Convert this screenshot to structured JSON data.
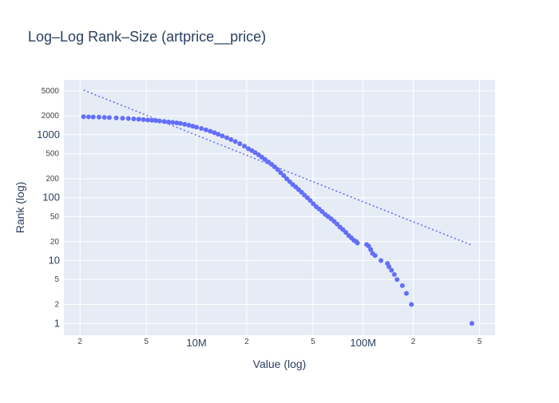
{
  "chart_data": {
    "type": "scatter",
    "title": "Log–Log Rank–Size (artprice__price)",
    "xlabel": "Value (log)",
    "ylabel": "Rank (log)",
    "x_scale": "log",
    "y_scale": "log",
    "xlim": [
      1600000,
      620000000
    ],
    "ylim": [
      0.65,
      7500
    ],
    "grid": true,
    "legend": "none",
    "colors": {
      "marker": "#636efa",
      "fit_line": "#636efa",
      "plot_bg": "#e5ecf6",
      "grid": "#ffffff",
      "text": "#2a3f5f"
    },
    "x_ticks": [
      {
        "value": 2000000,
        "label": "2",
        "major": false
      },
      {
        "value": 5000000,
        "label": "5",
        "major": false
      },
      {
        "value": 10000000,
        "label": "10M",
        "major": true
      },
      {
        "value": 20000000,
        "label": "2",
        "major": false
      },
      {
        "value": 50000000,
        "label": "5",
        "major": false
      },
      {
        "value": 100000000,
        "label": "100M",
        "major": true
      },
      {
        "value": 200000000,
        "label": "2",
        "major": false
      },
      {
        "value": 500000000,
        "label": "5",
        "major": false
      }
    ],
    "y_ticks": [
      {
        "value": 1,
        "label": "1",
        "major": true
      },
      {
        "value": 2,
        "label": "2",
        "major": false
      },
      {
        "value": 5,
        "label": "5",
        "major": false
      },
      {
        "value": 10,
        "label": "10",
        "major": true
      },
      {
        "value": 20,
        "label": "20",
        "major": false
      },
      {
        "value": 50,
        "label": "50",
        "major": false
      },
      {
        "value": 100,
        "label": "100",
        "major": true
      },
      {
        "value": 200,
        "label": "200",
        "major": false
      },
      {
        "value": 500,
        "label": "500",
        "major": false
      },
      {
        "value": 1000,
        "label": "1000",
        "major": true
      },
      {
        "value": 2000,
        "label": "2000",
        "major": false
      },
      {
        "value": 5000,
        "label": "5000",
        "major": false
      }
    ],
    "series": [
      {
        "type": "scatter",
        "points": [
          [
            2100000,
            1940
          ],
          [
            2250000,
            1930
          ],
          [
            2400000,
            1920
          ],
          [
            2600000,
            1910
          ],
          [
            2800000,
            1895
          ],
          [
            3000000,
            1880
          ],
          [
            3300000,
            1860
          ],
          [
            3600000,
            1840
          ],
          [
            3900000,
            1815
          ],
          [
            4200000,
            1790
          ],
          [
            4500000,
            1770
          ],
          [
            4800000,
            1745
          ],
          [
            5100000,
            1720
          ],
          [
            5400000,
            1700
          ],
          [
            5700000,
            1680
          ],
          [
            6000000,
            1660
          ],
          [
            6400000,
            1630
          ],
          [
            6800000,
            1600
          ],
          [
            7200000,
            1575
          ],
          [
            7600000,
            1550
          ],
          [
            8000000,
            1520
          ],
          [
            8500000,
            1470
          ],
          [
            9000000,
            1420
          ],
          [
            9500000,
            1370
          ],
          [
            10000000,
            1320
          ],
          [
            10700000,
            1260
          ],
          [
            11400000,
            1200
          ],
          [
            12100000,
            1140
          ],
          [
            12800000,
            1080
          ],
          [
            13500000,
            1020
          ],
          [
            14300000,
            960
          ],
          [
            15200000,
            900
          ],
          [
            16100000,
            840
          ],
          [
            17100000,
            780
          ],
          [
            18200000,
            720
          ],
          [
            19400000,
            660
          ],
          [
            20500000,
            600
          ],
          [
            21500000,
            560
          ],
          [
            22500000,
            520
          ],
          [
            23600000,
            480
          ],
          [
            24700000,
            440
          ],
          [
            25800000,
            405
          ],
          [
            27000000,
            370
          ],
          [
            28200000,
            340
          ],
          [
            29400000,
            310
          ],
          [
            30700000,
            280
          ],
          [
            32000000,
            250
          ],
          [
            33400000,
            225
          ],
          [
            34800000,
            200
          ],
          [
            36300000,
            180
          ],
          [
            37800000,
            162
          ],
          [
            39400000,
            148
          ],
          [
            41000000,
            135
          ],
          [
            42700000,
            122
          ],
          [
            44500000,
            110
          ],
          [
            46300000,
            100
          ],
          [
            48200000,
            90
          ],
          [
            50200000,
            80
          ],
          [
            52300000,
            72
          ],
          [
            54500000,
            66
          ],
          [
            56800000,
            60
          ],
          [
            59200000,
            54
          ],
          [
            61700000,
            50
          ],
          [
            64300000,
            46
          ],
          [
            67000000,
            42
          ],
          [
            69800000,
            38
          ],
          [
            72700000,
            34
          ],
          [
            75700000,
            31
          ],
          [
            78800000,
            28
          ],
          [
            82000000,
            25
          ],
          [
            85000000,
            23
          ],
          [
            88000000,
            21
          ],
          [
            91000000,
            20
          ],
          [
            92500000,
            19
          ],
          [
            105000000,
            18
          ],
          [
            108000000,
            17
          ],
          [
            111000000,
            15
          ],
          [
            114000000,
            13
          ],
          [
            118000000,
            12
          ],
          [
            128000000,
            10
          ],
          [
            140000000,
            9
          ],
          [
            143000000,
            8
          ],
          [
            148000000,
            7
          ],
          [
            154000000,
            6
          ],
          [
            160000000,
            5
          ],
          [
            172000000,
            4
          ],
          [
            182000000,
            3
          ],
          [
            195000000,
            2
          ],
          [
            450000000,
            1
          ]
        ]
      },
      {
        "type": "line",
        "style": "dotted",
        "points": [
          [
            2100000,
            5150
          ],
          [
            450000000,
            17.5
          ]
        ]
      }
    ]
  }
}
